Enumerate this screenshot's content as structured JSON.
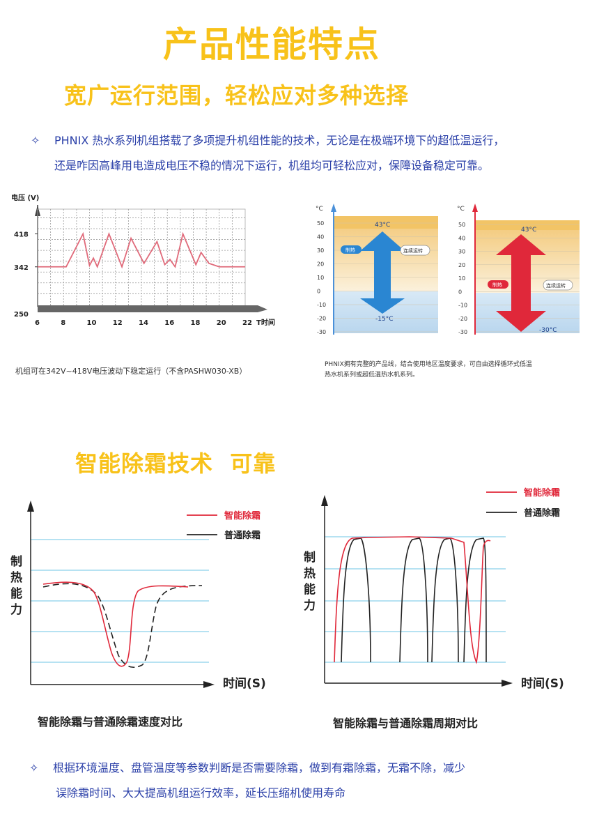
{
  "title": "产品性能特点",
  "section1": {
    "subtitle": "宽广运行范围，轻松应对多种选择",
    "bullet": "✧",
    "para_line1": "PHNIX 热水系列机组搭载了多项提升机组性能的技术，无论是在极端环境下的超低温运行，",
    "para_line2": "还是咋因高峰用电造成电压不稳的情况下运行，机组均可轻松应对，保障设备稳定可靠。"
  },
  "voltage_chart": {
    "chart_data": {
      "type": "line",
      "ylabel": "电压 (V)",
      "xlabel": "T时间",
      "y_ticks": [
        "418",
        "342",
        "250"
      ],
      "x_ticks": [
        "6",
        "8",
        "10",
        "12",
        "14",
        "16",
        "18",
        "20",
        "22"
      ],
      "xlim": [
        6,
        22
      ],
      "ylim": [
        250,
        475
      ],
      "series_color": "#e06a7a",
      "x": [
        6,
        8.2,
        9.5,
        10,
        10.3,
        10.6,
        11.5,
        12.5,
        13.2,
        14.2,
        15.2,
        15.8,
        16.2,
        16.6,
        17.2,
        18.2,
        18.6,
        19.2,
        20,
        22
      ],
      "y": [
        342,
        342,
        418,
        345,
        362,
        342,
        418,
        342,
        408,
        350,
        400,
        347,
        359,
        342,
        418,
        347,
        375,
        350,
        342,
        342
      ]
    },
    "caption": "机组可在342V~418V电压波动下稳定运行（不含PASHW030-XB）"
  },
  "temp_charts": {
    "unit": "°C",
    "ticks": [
      "50",
      "40",
      "30",
      "20",
      "10",
      "0",
      "-10",
      "-20",
      "-30"
    ],
    "left": {
      "high_label": "43°C",
      "low_label": "-15°C",
      "mode_label": "制热",
      "run_label": "连续运转",
      "range": [
        -15,
        43
      ],
      "color": "#2a86d2"
    },
    "right": {
      "high_label": "43°C",
      "low_label": "-30°C",
      "mode_label": "制热",
      "run_label": "连续运转",
      "range": [
        -30,
        43
      ],
      "color": "#e0283a"
    },
    "caption_line1": "PHNIX拥有完整的产品线，结合使用地区温度要求，可自由选择循环式低温",
    "caption_line2": "热水机系列或超低温热水机系列。"
  },
  "section2": {
    "subtitle": "智能除霜技术  可靠",
    "ylabel_chars": [
      "制",
      "热",
      "能",
      "力"
    ],
    "xlabel": "时间(S)",
    "legend_smart": "智能除霜",
    "legend_normal": "普通除霜",
    "smart_color": "#e0283a",
    "normal_color": "#222222",
    "grid_color": "#6cc6e6",
    "caption_left": "智能除霜与普通除霜速度对比",
    "caption_right": "智能除霜与普通除霜周期对比"
  },
  "section3": {
    "bullet": "✧",
    "para_line1": "根据环境温度、盘管温度等参数判断是否需要除霜，做到有霜除霜，无霜不除，减少",
    "para_line2": "误除霜时间、大大提高机组运行效率，延长压缩机使用寿命"
  }
}
